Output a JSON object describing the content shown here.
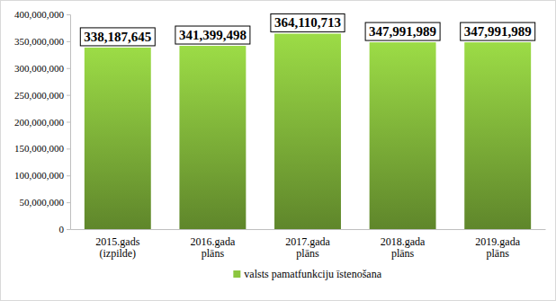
{
  "chart_data": {
    "type": "bar",
    "categories": [
      "2015.gads (izpilde)",
      "2016.gada plāns",
      "2017.gada plāns",
      "2018.gada plāns",
      "2019.gada plāns"
    ],
    "series": [
      {
        "name": "valsts pamatfunkciju īstenošana",
        "color": "#8cc63f",
        "values": [
          338187645,
          341399498,
          364110713,
          347991989,
          347991989
        ],
        "value_labels": [
          "338,187,645",
          "341,399,498",
          "364,110,713",
          "347,991,989",
          "347,991,989"
        ]
      }
    ],
    "ylim": [
      0,
      400000000
    ],
    "yticks": [
      0,
      {
        "value": 50000000,
        "label": "50,000,000"
      },
      {
        "value": 100000000,
        "label": "100,000,000"
      },
      {
        "value": 150000000,
        "label": "150,000,000"
      },
      {
        "value": 200000000,
        "label": "200,000,000"
      },
      {
        "value": 250000000,
        "label": "250,000,000"
      },
      {
        "value": 300000000,
        "label": "300,000,000"
      },
      {
        "value": 350000000,
        "label": "350,000,000"
      },
      {
        "value": 400000000,
        "label": "400,000,000"
      }
    ],
    "grid": false,
    "legend": "bottom",
    "data_labels": true
  }
}
